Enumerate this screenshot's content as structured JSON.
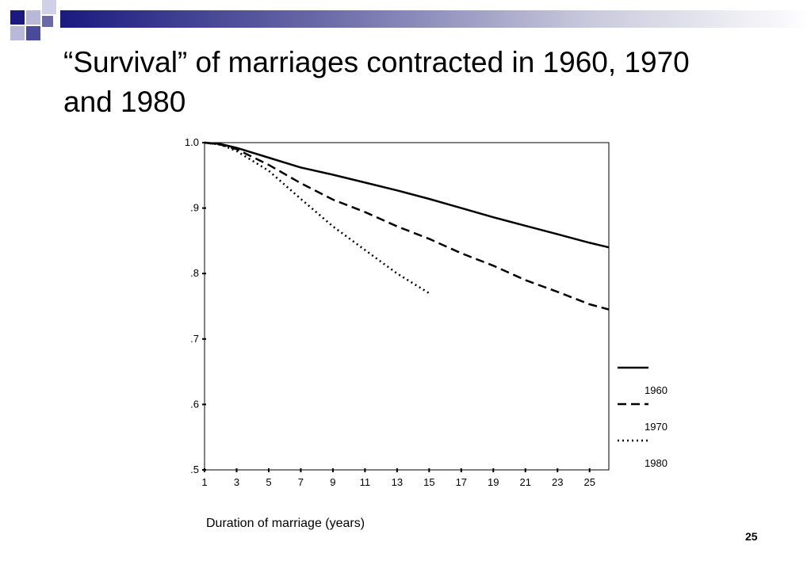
{
  "slide": {
    "title": "“Survival” of marriages contracted in 1960, 1970 and 1980",
    "page_number": "25",
    "accent_color": "#1a1a80"
  },
  "chart_data": {
    "type": "line",
    "title": "",
    "xlabel": "Duration of marriage (years)",
    "ylabel": "",
    "xlim": [
      1,
      26.2
    ],
    "ylim": [
      0.5,
      1.0
    ],
    "x_ticks": [
      1,
      3,
      5,
      7,
      9,
      11,
      13,
      15,
      17,
      19,
      21,
      23,
      25
    ],
    "x_tick_labels": [
      "1",
      "3",
      "5",
      "7",
      "9",
      "11",
      "13",
      "15",
      "17",
      "19",
      "21",
      "23",
      "25"
    ],
    "y_ticks": [
      0.5,
      0.6,
      0.7,
      0.8,
      0.9,
      1.0
    ],
    "y_tick_labels": [
      ".5",
      ".6",
      ".7",
      ".8",
      ".9",
      "1.0"
    ],
    "grid": false,
    "legend_position": "bottom-right",
    "series": [
      {
        "name": "1960",
        "style": "solid",
        "x": [
          1,
          2,
          3,
          5,
          7,
          9,
          11,
          13,
          15,
          17,
          19,
          21,
          23,
          25,
          26.2
        ],
        "y": [
          1.0,
          0.998,
          0.992,
          0.977,
          0.962,
          0.951,
          0.939,
          0.927,
          0.914,
          0.9,
          0.886,
          0.873,
          0.86,
          0.847,
          0.84
        ]
      },
      {
        "name": "1970",
        "style": "dashed",
        "x": [
          1,
          2,
          3,
          5,
          7,
          9,
          11,
          13,
          15,
          17,
          19,
          21,
          23,
          25,
          26.2
        ],
        "y": [
          1.0,
          0.997,
          0.99,
          0.966,
          0.938,
          0.913,
          0.894,
          0.872,
          0.853,
          0.831,
          0.812,
          0.79,
          0.772,
          0.753,
          0.745
        ]
      },
      {
        "name": "1980",
        "style": "dotted",
        "x": [
          1,
          2,
          3,
          5,
          7,
          9,
          11,
          13,
          15
        ],
        "y": [
          1.0,
          0.997,
          0.987,
          0.957,
          0.914,
          0.872,
          0.836,
          0.8,
          0.77
        ]
      }
    ]
  }
}
